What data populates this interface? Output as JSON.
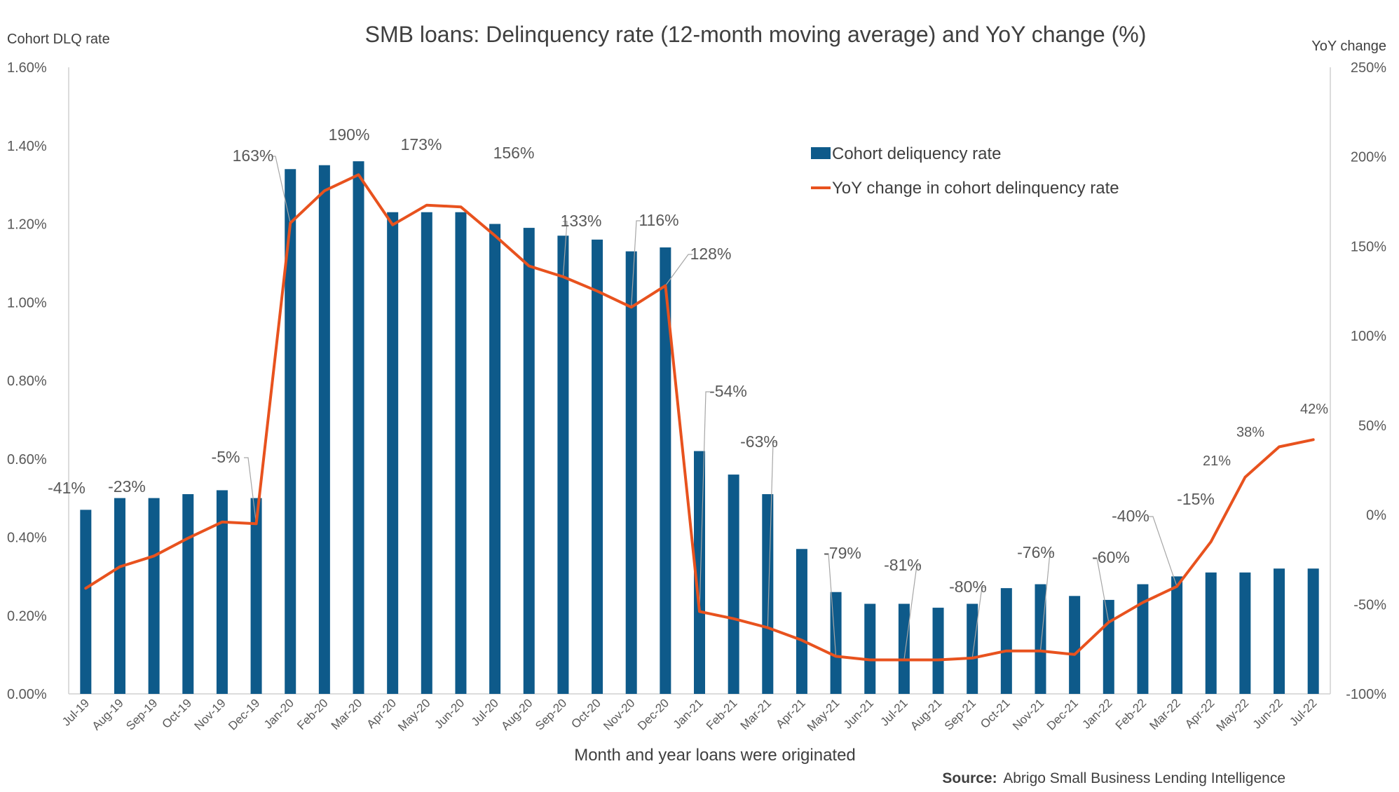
{
  "chart_data": {
    "type": "bar",
    "title": "SMB loans: Delinquency rate (12-month moving average) and YoY change (%)",
    "xlabel": "Month and year loans were originated",
    "ylabel": "Cohort DLQ rate",
    "y2label": "YoY change",
    "ylim": [
      0,
      1.6
    ],
    "y2lim": [
      -100,
      250
    ],
    "yticks": [
      "0.00%",
      "0.20%",
      "0.40%",
      "0.60%",
      "0.80%",
      "1.00%",
      "1.20%",
      "1.40%",
      "1.60%"
    ],
    "y2ticks": [
      "-100%",
      "-50%",
      "0%",
      "50%",
      "100%",
      "150%",
      "200%",
      "250%"
    ],
    "legend_position": "top-right",
    "grid": false,
    "categories": [
      "Jul-19",
      "Aug-19",
      "Sep-19",
      "Oct-19",
      "Nov-19",
      "Dec-19",
      "Jan-20",
      "Feb-20",
      "Mar-20",
      "Apr-20",
      "May-20",
      "Jun-20",
      "Jul-20",
      "Aug-20",
      "Sep-20",
      "Oct-20",
      "Nov-20",
      "Dec-20",
      "Jan-21",
      "Feb-21",
      "Mar-21",
      "Apr-21",
      "May-21",
      "Jun-21",
      "Jul-21",
      "Aug-21",
      "Sep-21",
      "Oct-21",
      "Nov-21",
      "Dec-21",
      "Jan-22",
      "Feb-22",
      "Mar-22",
      "Apr-22",
      "May-22",
      "Jun-22",
      "Jul-22"
    ],
    "series": [
      {
        "name": "Cohort deliquency rate",
        "type": "bar",
        "axis": "left",
        "color": "#0e5a8a",
        "values": [
          0.47,
          0.5,
          0.5,
          0.51,
          0.52,
          0.5,
          1.34,
          1.35,
          1.36,
          1.23,
          1.23,
          1.23,
          1.2,
          1.19,
          1.17,
          1.16,
          1.13,
          1.14,
          0.62,
          0.56,
          0.51,
          0.37,
          0.26,
          0.23,
          0.23,
          0.22,
          0.23,
          0.27,
          0.28,
          0.25,
          0.24,
          0.28,
          0.3,
          0.31,
          0.31,
          0.32,
          0.32
        ]
      },
      {
        "name": "YoY change in cohort delinquency rate",
        "type": "line",
        "axis": "right",
        "color": "#e8521e",
        "values": [
          -41,
          -29,
          -23,
          -13,
          -4,
          -5,
          163,
          181,
          190,
          162,
          173,
          172,
          156,
          139,
          133,
          125,
          116,
          128,
          -54,
          -58,
          -63,
          -70,
          -79,
          -81,
          -81,
          -81,
          -80,
          -76,
          -76,
          -78,
          -60,
          -49,
          -40,
          -15,
          21,
          38,
          42
        ]
      }
    ],
    "annotations": [
      {
        "index": 0,
        "text": "-41%"
      },
      {
        "index": 2,
        "text": "-23%"
      },
      {
        "index": 5,
        "text": "-5%"
      },
      {
        "index": 6,
        "text": "163%"
      },
      {
        "index": 8,
        "text": "190%"
      },
      {
        "index": 10,
        "text": "173%"
      },
      {
        "index": 12,
        "text": "156%"
      },
      {
        "index": 14,
        "text": "133%"
      },
      {
        "index": 16,
        "text": "116%"
      },
      {
        "index": 17,
        "text": "128%"
      },
      {
        "index": 18,
        "text": "-54%"
      },
      {
        "index": 20,
        "text": "-63%"
      },
      {
        "index": 22,
        "text": "-79%"
      },
      {
        "index": 24,
        "text": "-81%"
      },
      {
        "index": 26,
        "text": "-80%"
      },
      {
        "index": 28,
        "text": "-76%"
      },
      {
        "index": 30,
        "text": "-60%"
      },
      {
        "index": 32,
        "text": "-40%"
      },
      {
        "index": 33,
        "text": "-15%"
      },
      {
        "index": 34,
        "text": "21%"
      },
      {
        "index": 35,
        "text": "38%"
      },
      {
        "index": 36,
        "text": "42%"
      }
    ],
    "source_label": "Source:",
    "source_text": "Abrigo Small Business Lending Intelligence"
  }
}
